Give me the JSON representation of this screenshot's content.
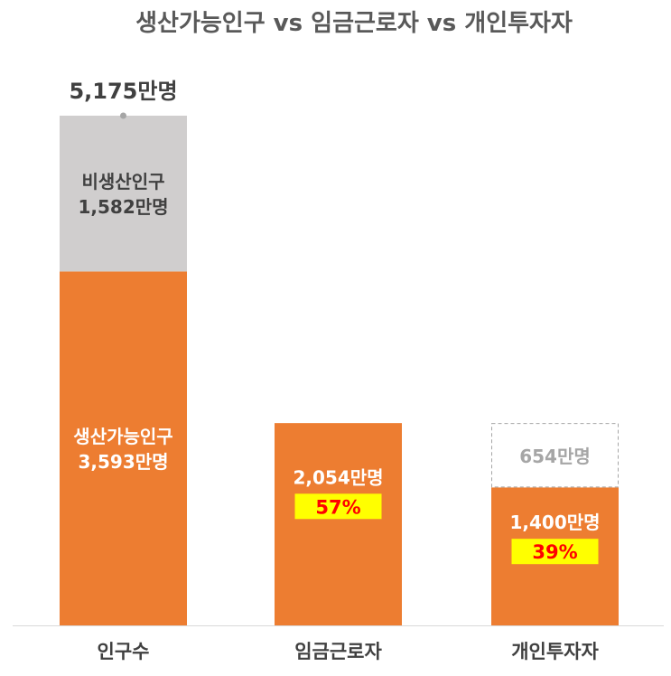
{
  "chart_data": {
    "type": "bar",
    "title": "생산가능인구 vs 임금근로자 vs 개인투자자",
    "categories": [
      "인구수",
      "임금근로자",
      "개인투자자"
    ],
    "unit": "만명",
    "total": {
      "value": 5175,
      "label": "5,175만명"
    },
    "stacks": [
      {
        "category": "인구수",
        "segments": [
          {
            "name": "생산가능인구",
            "value": 3593,
            "label": "3,593만명",
            "style": "orange"
          },
          {
            "name": "비생산인구",
            "value": 1582,
            "label": "1,582만명",
            "style": "gray"
          }
        ]
      },
      {
        "category": "임금근로자",
        "segments": [
          {
            "name": "",
            "value": 2054,
            "label": "2,054만명",
            "percent": "57%",
            "style": "orange"
          }
        ]
      },
      {
        "category": "개인투자자",
        "segments": [
          {
            "name": "",
            "value": 1400,
            "label": "1,400만명",
            "percent": "39%",
            "style": "orange"
          },
          {
            "name": "",
            "value": 654,
            "label": "654만명",
            "style": "dashed"
          }
        ]
      }
    ],
    "ylim": [
      0,
      5175
    ],
    "grid": false,
    "legend": "none",
    "colors": {
      "orange": "#ED7D31",
      "gray": "#D0CECE",
      "highlight": "#FFFF00",
      "percent_text": "#FF0000",
      "dashed_border": "#A6A6A6",
      "dashed_text": "#A6A6A6",
      "title": "#595959",
      "category": "#404040",
      "total": "#404040"
    }
  }
}
